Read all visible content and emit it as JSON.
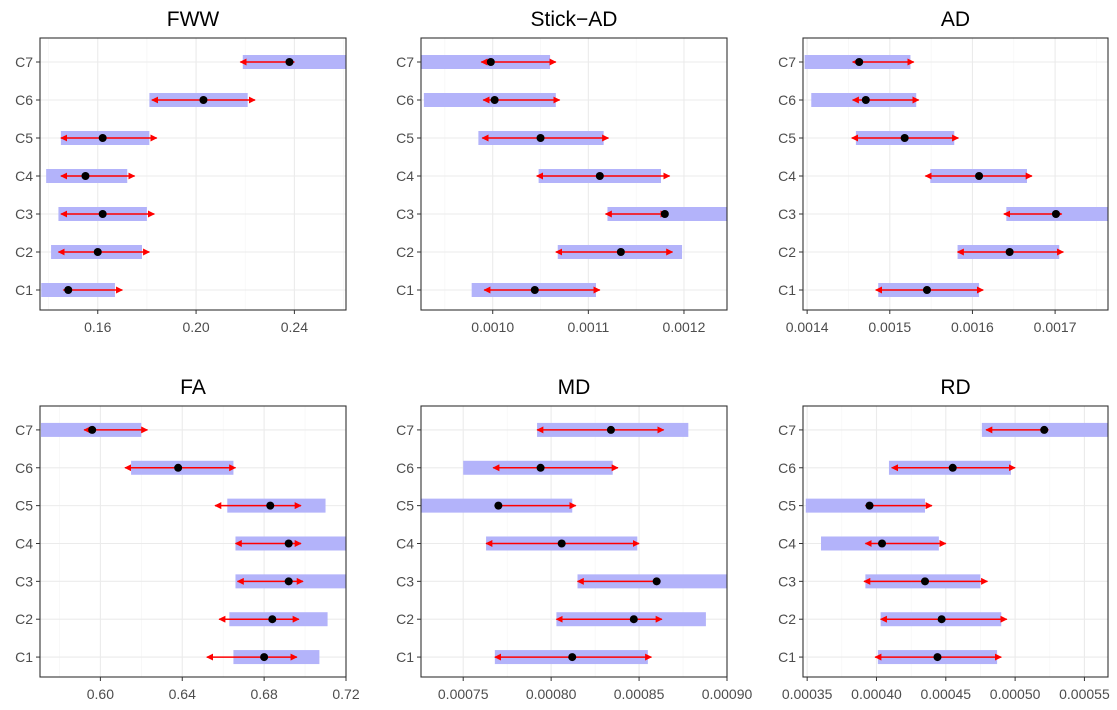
{
  "chart_data": [
    {
      "type": "dot-interval",
      "title": "FWW",
      "categories": [
        "C1",
        "C2",
        "C3",
        "C4",
        "C5",
        "C6",
        "C7"
      ],
      "xlim": [
        0.1365,
        0.261
      ],
      "xticks": [
        0.16,
        0.2,
        0.24
      ],
      "xtick_labels": [
        "0.16",
        "0.20",
        "0.24"
      ],
      "points": [
        0.148,
        0.16,
        0.162,
        0.155,
        0.162,
        0.203,
        0.238
      ],
      "red_interval": [
        [
          0.146,
          0.17
        ],
        [
          0.144,
          0.181
        ],
        [
          0.145,
          0.183
        ],
        [
          0.145,
          0.175
        ],
        [
          0.145,
          0.184
        ],
        [
          0.182,
          0.224
        ],
        [
          0.218,
          0.24
        ]
      ],
      "blue_interval": [
        [
          0.137,
          0.167
        ],
        [
          0.141,
          0.178
        ],
        [
          0.144,
          0.18
        ],
        [
          0.139,
          0.172
        ],
        [
          0.145,
          0.181
        ],
        [
          0.181,
          0.221
        ],
        [
          0.219,
          0.261
        ]
      ]
    },
    {
      "type": "dot-interval",
      "title": "Stick−AD",
      "categories": [
        "C1",
        "C2",
        "C3",
        "C4",
        "C5",
        "C6",
        "C7"
      ],
      "xlim": [
        0.000925,
        0.001245
      ],
      "xticks": [
        0.001,
        0.0011,
        0.0012
      ],
      "xtick_labels": [
        "0.0010",
        "0.0011",
        "0.0012"
      ],
      "points": [
        0.001044,
        0.001134,
        0.00118,
        0.001112,
        0.00105,
        0.001002,
        0.000998
      ],
      "red_interval": [
        [
          0.000991,
          0.001112
        ],
        [
          0.001066,
          0.001188
        ],
        [
          0.001118,
          0.001182
        ],
        [
          0.001046,
          0.001185
        ],
        [
          0.000989,
          0.001121
        ],
        [
          0.00099,
          0.00107
        ],
        [
          0.000988,
          0.001066
        ]
      ],
      "blue_interval": [
        [
          0.000978,
          0.001108
        ],
        [
          0.001068,
          0.001198
        ],
        [
          0.00112,
          0.001245
        ],
        [
          0.001048,
          0.001176
        ],
        [
          0.000985,
          0.001116
        ],
        [
          0.000928,
          0.001066
        ],
        [
          0.000925,
          0.00106
        ]
      ]
    },
    {
      "type": "dot-interval",
      "title": "AD",
      "categories": [
        "C1",
        "C2",
        "C3",
        "C4",
        "C5",
        "C6",
        "C7"
      ],
      "xlim": [
        0.001395,
        0.001764
      ],
      "xticks": [
        0.0014,
        0.0015,
        0.0016,
        0.0017
      ],
      "xtick_labels": [
        "0.0014",
        "0.0015",
        "0.0016",
        "0.0017"
      ],
      "points": [
        0.001545,
        0.001645,
        0.001701,
        0.001608,
        0.001518,
        0.001471,
        0.001463
      ],
      "red_interval": [
        [
          0.001483,
          0.001613
        ],
        [
          0.001582,
          0.00171
        ],
        [
          0.001638,
          0.001708
        ],
        [
          0.001543,
          0.001672
        ],
        [
          0.001454,
          0.001583
        ],
        [
          0.001455,
          0.001535
        ],
        [
          0.001455,
          0.001529
        ]
      ],
      "blue_interval": [
        [
          0.001486,
          0.001608
        ],
        [
          0.001582,
          0.001705
        ],
        [
          0.001641,
          0.001764
        ],
        [
          0.001549,
          0.001666
        ],
        [
          0.001459,
          0.001578
        ],
        [
          0.001405,
          0.001532
        ],
        [
          0.001397,
          0.001525
        ]
      ]
    },
    {
      "type": "dot-interval",
      "title": "FA",
      "categories": [
        "C1",
        "C2",
        "C3",
        "C4",
        "C5",
        "C6",
        "C7"
      ],
      "xlim": [
        0.5705,
        0.72
      ],
      "xticks": [
        0.6,
        0.64,
        0.68,
        0.72
      ],
      "xtick_labels": [
        "0.60",
        "0.64",
        "0.68",
        "0.72"
      ],
      "points": [
        0.68,
        0.684,
        0.692,
        0.692,
        0.683,
        0.638,
        0.596
      ],
      "red_interval": [
        [
          0.652,
          0.696
        ],
        [
          0.658,
          0.697
        ],
        [
          0.667,
          0.699
        ],
        [
          0.666,
          0.698
        ],
        [
          0.656,
          0.698
        ],
        [
          0.612,
          0.666
        ],
        [
          0.592,
          0.623
        ]
      ],
      "blue_interval": [
        [
          0.665,
          0.707
        ],
        [
          0.663,
          0.711
        ],
        [
          0.666,
          0.72
        ],
        [
          0.666,
          0.72
        ],
        [
          0.662,
          0.71
        ],
        [
          0.615,
          0.665
        ],
        [
          0.571,
          0.62
        ]
      ]
    },
    {
      "type": "dot-interval",
      "title": "MD",
      "categories": [
        "C1",
        "C2",
        "C3",
        "C4",
        "C5",
        "C6",
        "C7"
      ],
      "xlim": [
        0.000726,
        0.0009
      ],
      "xticks": [
        0.00075,
        0.0008,
        0.00085,
        0.0009
      ],
      "xtick_labels": [
        "0.00075",
        "0.00080",
        "0.00085",
        "0.00090"
      ],
      "points": [
        0.000812,
        0.000847,
        0.00086,
        0.000806,
        0.00077,
        0.000794,
        0.000834
      ],
      "red_interval": [
        [
          0.000768,
          0.000857
        ],
        [
          0.000803,
          0.000863
        ],
        [
          0.000815,
          0.000862
        ],
        [
          0.000763,
          0.00085
        ],
        [
          0.000768,
          0.000814
        ],
        [
          0.000767,
          0.000838
        ],
        [
          0.000792,
          0.000864
        ]
      ],
      "blue_interval": [
        [
          0.000768,
          0.000855
        ],
        [
          0.000803,
          0.000888
        ],
        [
          0.000815,
          0.0009
        ],
        [
          0.000763,
          0.000849
        ],
        [
          0.000726,
          0.000812
        ],
        [
          0.00075,
          0.000835
        ],
        [
          0.000792,
          0.000878
        ]
      ]
    },
    {
      "type": "dot-interval",
      "title": "RD",
      "categories": [
        "C1",
        "C2",
        "C3",
        "C4",
        "C5",
        "C6",
        "C7"
      ],
      "xlim": [
        0.000347,
        0.000567
      ],
      "xticks": [
        0.00035,
        0.0004,
        0.00045,
        0.0005,
        0.00055
      ],
      "xtick_labels": [
        "0.00035",
        "0.00040",
        "0.00045",
        "0.00050",
        "0.00055"
      ],
      "points": [
        0.000444,
        0.000447,
        0.000435,
        0.000404,
        0.000395,
        0.000455,
        0.000521
      ],
      "red_interval": [
        [
          0.000399,
          0.00049
        ],
        [
          0.000403,
          0.000494
        ],
        [
          0.000391,
          0.00048
        ],
        [
          0.000392,
          0.00045
        ],
        [
          0.000392,
          0.00044
        ],
        [
          0.000411,
          0.0005
        ],
        [
          0.000479,
          0.000524
        ]
      ],
      "blue_interval": [
        [
          0.000401,
          0.000487
        ],
        [
          0.000403,
          0.00049
        ],
        [
          0.000392,
          0.000475
        ],
        [
          0.00036,
          0.000445
        ],
        [
          0.000349,
          0.000435
        ],
        [
          0.000409,
          0.000497
        ],
        [
          0.000476,
          0.000567
        ]
      ]
    }
  ]
}
